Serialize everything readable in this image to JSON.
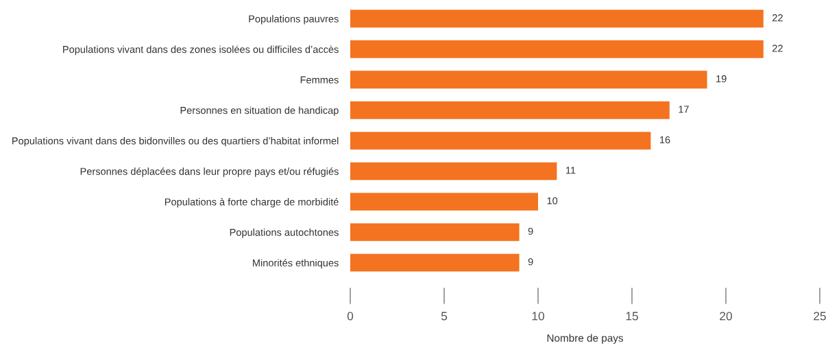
{
  "chart_data": {
    "type": "bar",
    "orientation": "horizontal",
    "xlabel": "Nombre de pays",
    "categories": [
      "Populations pauvres",
      "Populations vivant dans des zones isolées ou difficiles d’accès",
      "Femmes",
      "Personnes en situation de handicap",
      "Populations vivant dans des bidonvilles ou des quartiers d’habitat informel",
      "Personnes déplacées dans leur propre pays et/ou réfugiés",
      "Populations à forte charge de morbidité",
      "Populations autochtones",
      "Minorités ethniques"
    ],
    "values": [
      22,
      22,
      19,
      17,
      16,
      11,
      10,
      9,
      9
    ],
    "color": "#f47321",
    "xlim": [
      0,
      25
    ],
    "xticks": [
      0,
      5,
      10,
      15,
      20,
      25
    ],
    "data_labels": true,
    "grid": false,
    "legend": false
  }
}
